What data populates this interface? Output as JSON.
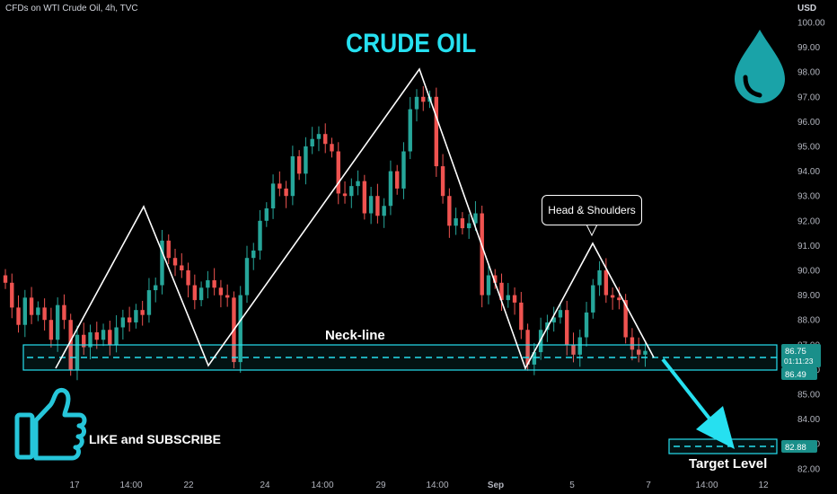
{
  "header": {
    "symbol_line": "CFDs on WTI Crude Oil, 4h, TVC",
    "currency": "USD"
  },
  "annotations": {
    "title": "CRUDE OIL",
    "neckline": "Neck-line",
    "pattern": "Head & Shoulders",
    "cta": "LIKE and SUBSCRIBE",
    "target": "Target Level"
  },
  "price_labels": {
    "last": "86.75",
    "countdown": "01:11:23",
    "neck_low": "86.49",
    "target": "82.88"
  },
  "icons": [
    "oil-drop-icon",
    "thumbs-up-icon"
  ],
  "colors": {
    "up": "#26a69a",
    "down": "#ef5350",
    "accent": "#26e0f0"
  },
  "chart_data": {
    "type": "candlestick",
    "y_ticks": [
      "82.00",
      "83.00",
      "84.00",
      "85.00",
      "86.00",
      "87.00",
      "88.00",
      "89.00",
      "90.00",
      "91.00",
      "92.00",
      "93.00",
      "94.00",
      "95.00",
      "96.00",
      "97.00",
      "98.00",
      "99.00",
      "100.00"
    ],
    "x_ticks": [
      "17",
      "14:00",
      "22",
      "24",
      "14:00",
      "29",
      "14:00",
      "Sep",
      "5",
      "7",
      "14:00",
      "12"
    ],
    "ylim": [
      81.5,
      100.5
    ],
    "grid": false,
    "closes": [
      89.5,
      88.5,
      87.8,
      88.9,
      88.2,
      88.5,
      88.0,
      87.2,
      88.6,
      88.0,
      86.0,
      87.4,
      86.9,
      87.5,
      87.2,
      87.6,
      87.0,
      87.7,
      88.1,
      87.9,
      88.4,
      88.2,
      89.2,
      89.4,
      91.2,
      90.5,
      90.2,
      90.0,
      89.4,
      88.8,
      89.3,
      89.6,
      89.3,
      89.0,
      88.9,
      86.3,
      89.0,
      90.5,
      90.8,
      92.0,
      92.5,
      93.5,
      93.3,
      93.0,
      94.6,
      93.9,
      95.0,
      95.3,
      95.5,
      95.1,
      94.8,
      93.1,
      93.0,
      93.4,
      93.6,
      92.3,
      93.0,
      92.2,
      92.6,
      94.0,
      93.3,
      94.8,
      96.5,
      97.0,
      96.8,
      97.0,
      94.2,
      93.0,
      91.8,
      92.1,
      91.7,
      91.9,
      92.3,
      89.0,
      89.8,
      89.5,
      88.8,
      89.0,
      88.7,
      87.6,
      86.2,
      86.7,
      87.6,
      87.9,
      88.1,
      88.4,
      87.0,
      86.6,
      87.3,
      88.3,
      89.4,
      90.0,
      89.0,
      88.9,
      88.8,
      87.3,
      86.8,
      86.6,
      86.75
    ]
  }
}
